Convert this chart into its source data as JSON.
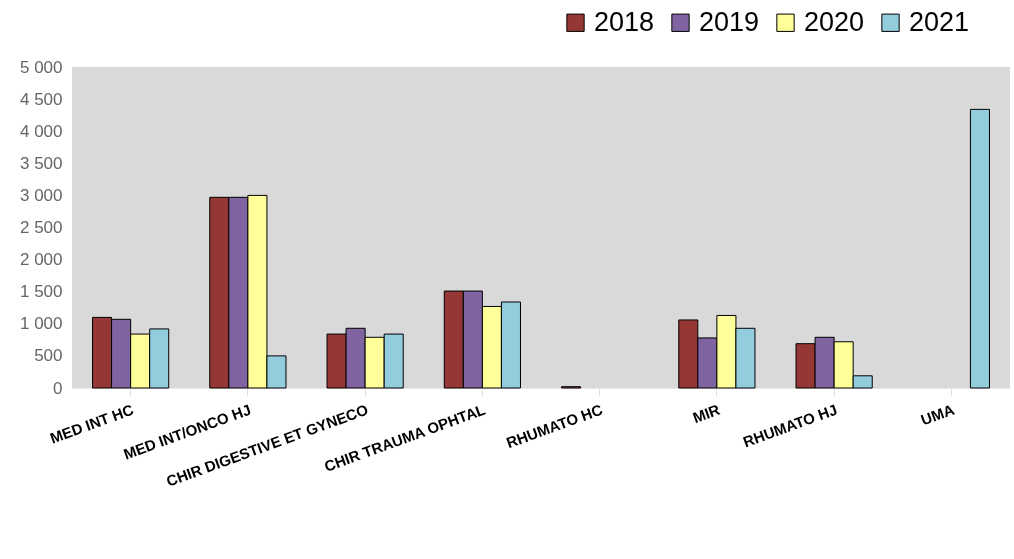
{
  "chart_data": {
    "type": "bar",
    "categories": [
      "MED INT HC",
      "MED INT/ONCO HJ",
      "CHIR DIGESTIVE ET GYNECO",
      "CHIR TRAUMA OPHTAL",
      "RHUMATO HC",
      "MIR",
      "RHUMATO HJ",
      "UMA"
    ],
    "series": [
      {
        "name": "2018",
        "color": "#953735",
        "values": [
          1100,
          2970,
          840,
          1510,
          20,
          1060,
          690,
          null
        ]
      },
      {
        "name": "2019",
        "color": "#8064a2",
        "values": [
          1070,
          2970,
          930,
          1510,
          null,
          780,
          790,
          null
        ]
      },
      {
        "name": "2020",
        "color": "#ffff99",
        "values": [
          840,
          3000,
          790,
          1270,
          null,
          1130,
          720,
          null
        ]
      },
      {
        "name": "2021",
        "color": "#93cddd",
        "values": [
          920,
          500,
          840,
          1340,
          null,
          930,
          190,
          4340
        ]
      }
    ],
    "ylim": [
      0,
      5000
    ],
    "yticks": [
      0,
      500,
      {
        "value": 1000,
        "label": "1 000"
      },
      {
        "value": 1500,
        "label": "1 500"
      },
      {
        "value": 2000,
        "label": "2 000"
      },
      {
        "value": 2500,
        "label": "2 500"
      },
      {
        "value": 3000,
        "label": "3 000"
      },
      {
        "value": 3500,
        "label": "3 500"
      },
      {
        "value": 4000,
        "label": "4 000"
      },
      {
        "value": 4500,
        "label": "4 500"
      },
      {
        "value": 5000,
        "label": "5 000"
      }
    ],
    "grid": false,
    "legend": "top right"
  }
}
